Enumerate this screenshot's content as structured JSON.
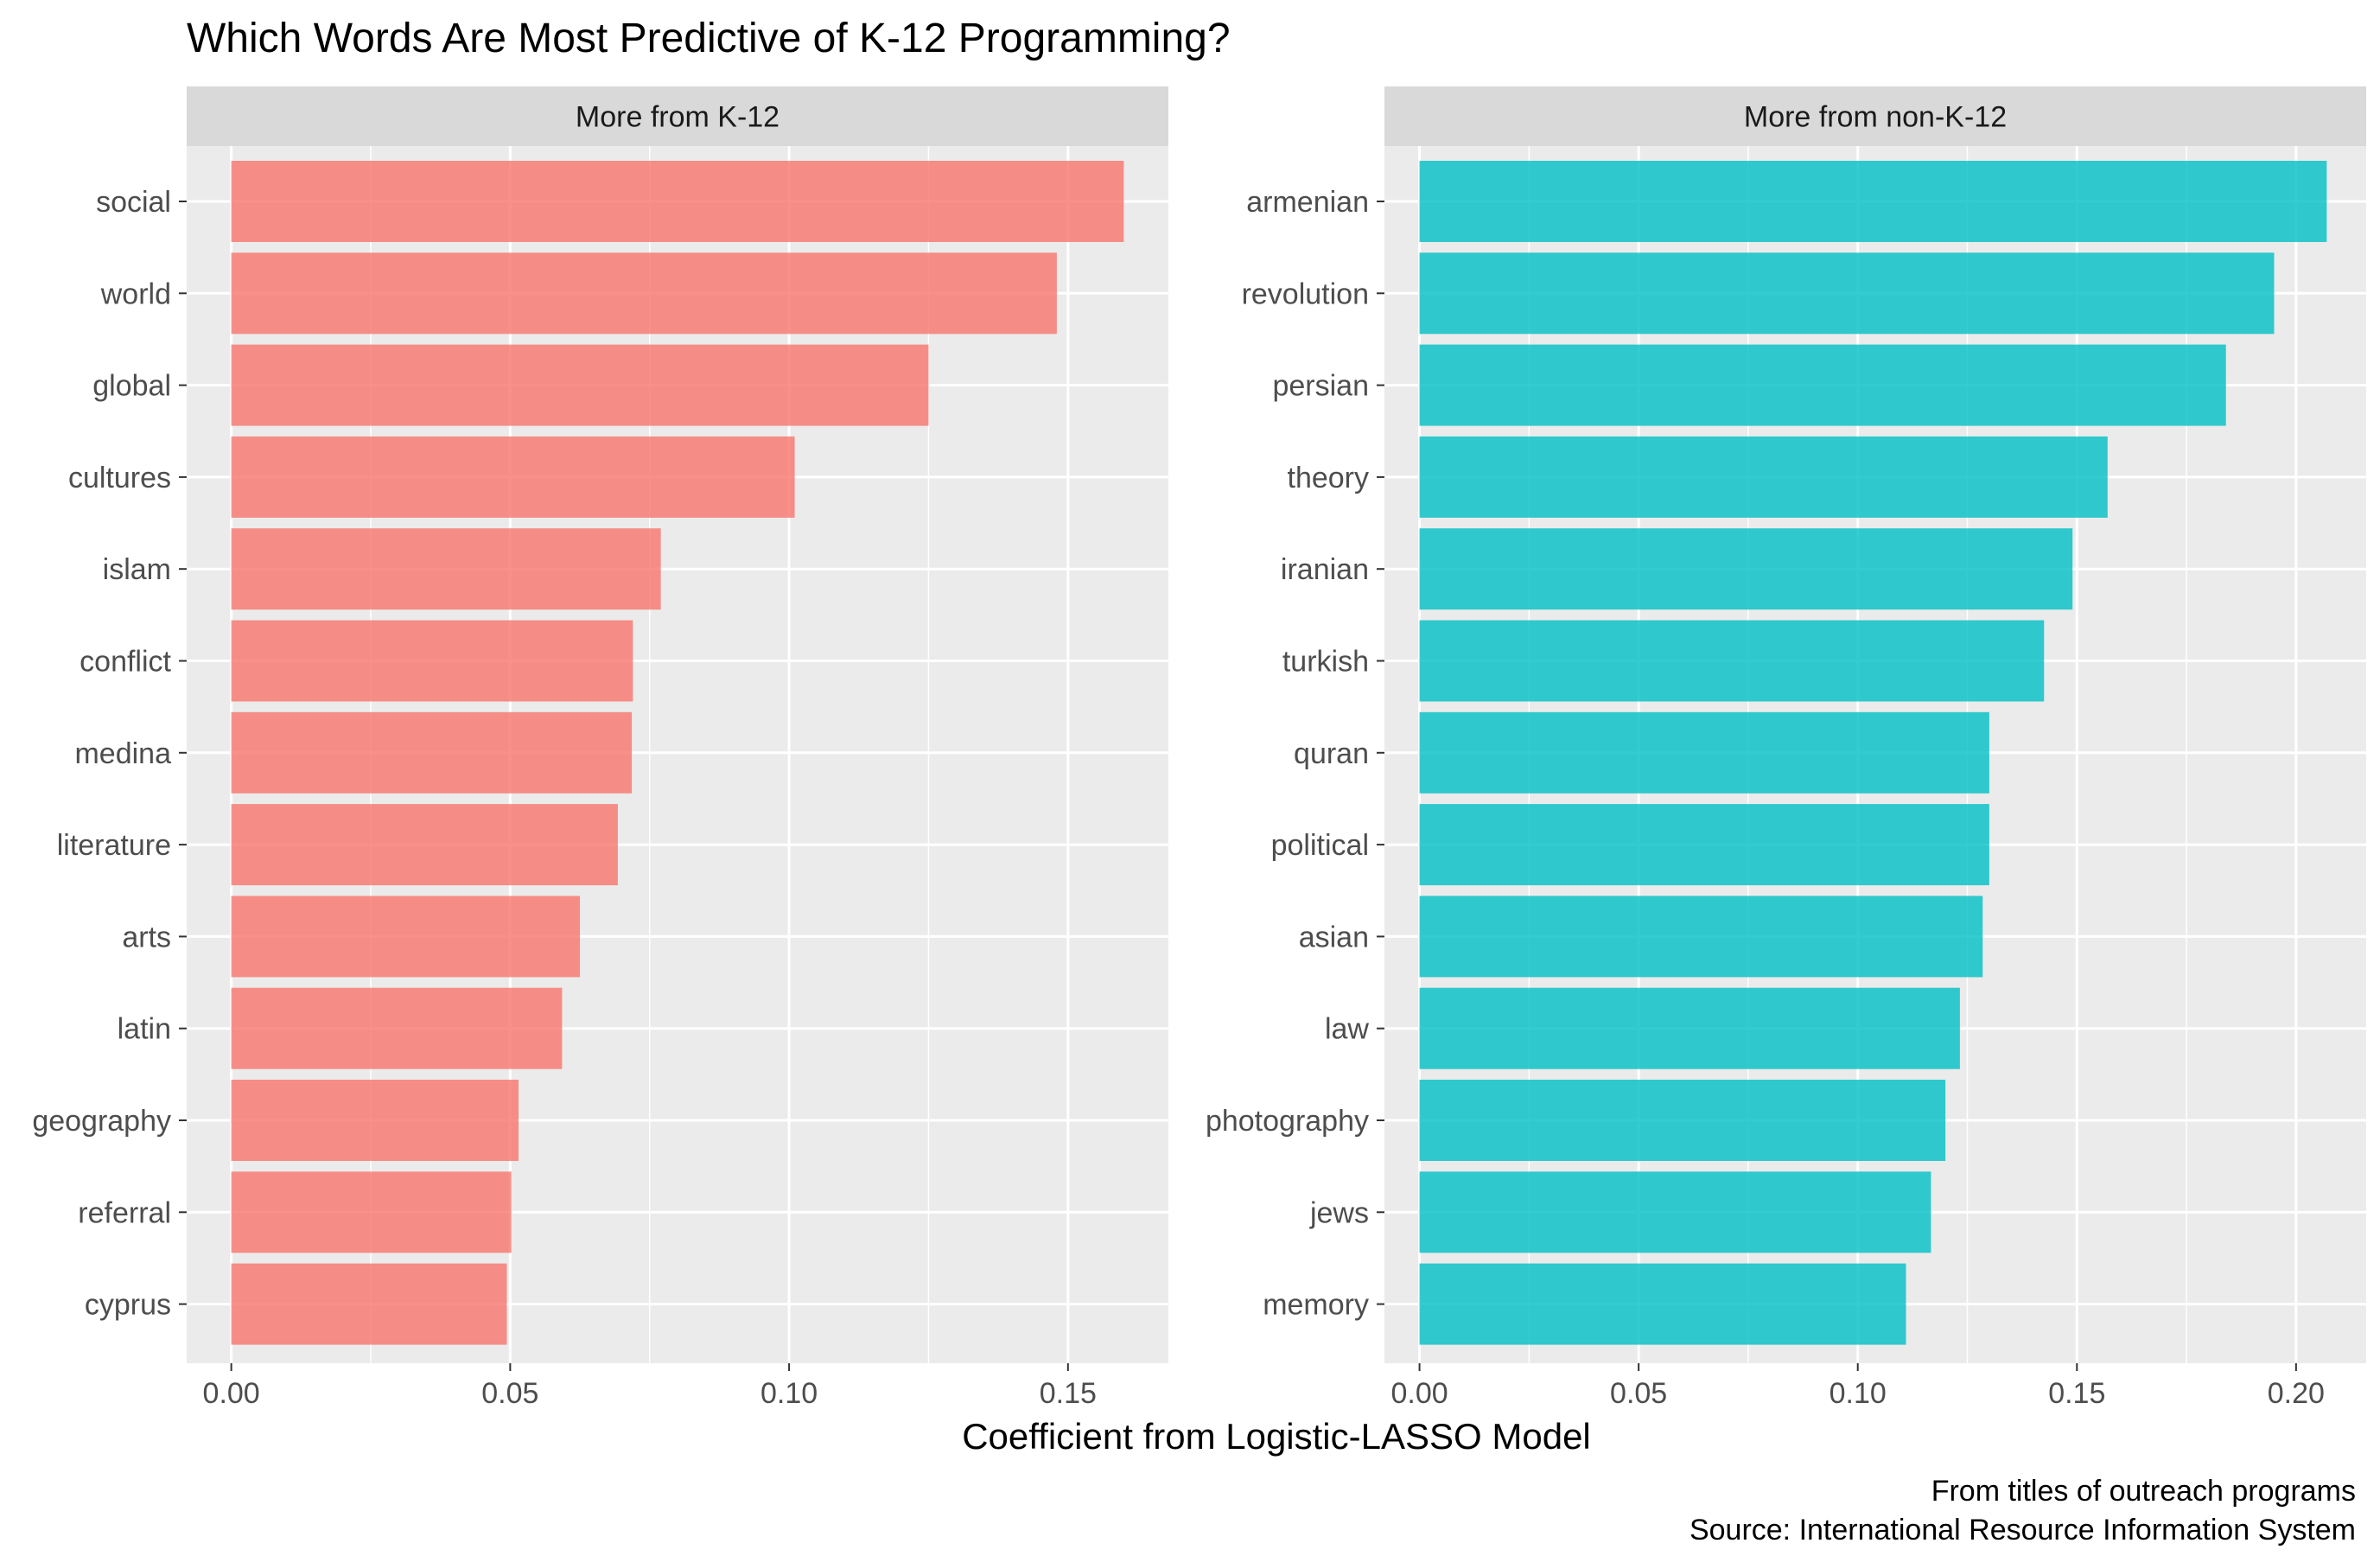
{
  "chart_data": {
    "type": "bar",
    "orientation": "horizontal",
    "title": "Which Words Are Most Predictive of K-12 Programming?",
    "xlabel": "Coefficient from Logistic-LASSO Model",
    "caption": [
      "From titles of outreach programs",
      "Source: International Resource Information System"
    ],
    "grid": true,
    "panels": [
      {
        "strip": "More from K-12",
        "color": "#F8766D",
        "xlim": [
          -0.008,
          0.168
        ],
        "xticks": [
          0.0,
          0.05,
          0.1,
          0.15
        ],
        "xtick_labels": [
          "0.00",
          "0.05",
          "0.10",
          "0.15"
        ],
        "categories": [
          "social",
          "world",
          "global",
          "cultures",
          "islam",
          "conflict",
          "medina",
          "literature",
          "arts",
          "latin",
          "geography",
          "referral",
          "cyprus"
        ],
        "values": [
          0.16,
          0.148,
          0.125,
          0.101,
          0.077,
          0.072,
          0.0718,
          0.0693,
          0.0625,
          0.0593,
          0.0515,
          0.0502,
          0.0494
        ]
      },
      {
        "strip": "More from non-K-12",
        "color": "#00BFC4",
        "xlim": [
          -0.008,
          0.216
        ],
        "xticks": [
          0.0,
          0.05,
          0.1,
          0.15,
          0.2
        ],
        "xtick_labels": [
          "0.00",
          "0.05",
          "0.10",
          "0.15",
          "0.20"
        ],
        "categories": [
          "armenian",
          "revolution",
          "persian",
          "theory",
          "iranian",
          "turkish",
          "quran",
          "political",
          "asian",
          "law",
          "photography",
          "jews",
          "memory"
        ],
        "values": [
          0.207,
          0.195,
          0.184,
          0.157,
          0.149,
          0.1425,
          0.13,
          0.13,
          0.1285,
          0.1233,
          0.12,
          0.1167,
          0.111
        ]
      }
    ]
  }
}
